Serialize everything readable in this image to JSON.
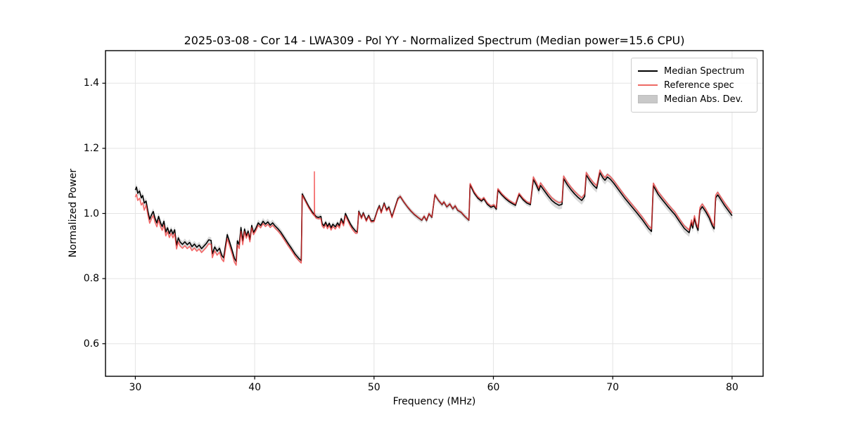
{
  "title": "2025-03-08 - Cor 14 - LWA309 - Pol YY - Normalized Spectrum (Median power=15.6 CPU)",
  "axes": {
    "xlabel": "Frequency (MHz)",
    "ylabel": "Normalized Power",
    "xlim": [
      27.5,
      82.6
    ],
    "ylim": [
      0.5,
      1.5
    ],
    "xticks": [
      30,
      40,
      50,
      60,
      70,
      80
    ],
    "yticks": [
      0.6,
      0.8,
      1.0,
      1.2,
      1.4
    ],
    "grid": true
  },
  "colors": {
    "median_line": "#000000",
    "reference_line": "#f03030",
    "reference_opacity": 0.72,
    "mad_band": "#bfbfbf",
    "grid": "#e4e4e4",
    "spine": "#000000",
    "legend_border": "#cccccc"
  },
  "legend": {
    "position": "upper right",
    "items": [
      {
        "label": "Median Spectrum",
        "handle": "line",
        "color": "#000000"
      },
      {
        "label": "Reference spec",
        "handle": "line",
        "color": "#ee6a64"
      },
      {
        "label": "Median Abs. Dev.",
        "handle": "patch",
        "color": "#c9c9c9"
      }
    ]
  },
  "chart_data": {
    "type": "line",
    "title": "2025-03-08 - Cor 14 - LWA309 - Pol YY - Normalized Spectrum (Median power=15.6 CPU)",
    "xlabel": "Frequency (MHz)",
    "ylabel": "Normalized Power",
    "xlim": [
      27.5,
      82.6
    ],
    "ylim": [
      0.5,
      1.5
    ],
    "legend_position": "upper right",
    "series": [
      {
        "name": "Median Spectrum",
        "color": "#000000",
        "points": [
          [
            30.0,
            1.072
          ],
          [
            30.1,
            1.081
          ],
          [
            30.2,
            1.062
          ],
          [
            30.35,
            1.069
          ],
          [
            30.5,
            1.048
          ],
          [
            30.62,
            1.055
          ],
          [
            30.75,
            1.032
          ],
          [
            30.9,
            1.038
          ],
          [
            31.05,
            1.008
          ],
          [
            31.2,
            0.982
          ],
          [
            31.35,
            0.995
          ],
          [
            31.5,
            1.006
          ],
          [
            31.65,
            0.985
          ],
          [
            31.8,
            0.971
          ],
          [
            31.95,
            0.991
          ],
          [
            32.1,
            0.972
          ],
          [
            32.25,
            0.96
          ],
          [
            32.4,
            0.976
          ],
          [
            32.55,
            0.943
          ],
          [
            32.7,
            0.956
          ],
          [
            32.85,
            0.938
          ],
          [
            33.0,
            0.951
          ],
          [
            33.15,
            0.937
          ],
          [
            33.3,
            0.95
          ],
          [
            33.45,
            0.903
          ],
          [
            33.6,
            0.925
          ],
          [
            33.75,
            0.912
          ],
          [
            33.95,
            0.905
          ],
          [
            34.15,
            0.913
          ],
          [
            34.35,
            0.904
          ],
          [
            34.55,
            0.911
          ],
          [
            34.75,
            0.898
          ],
          [
            34.95,
            0.906
          ],
          [
            35.15,
            0.896
          ],
          [
            35.35,
            0.903
          ],
          [
            35.55,
            0.892
          ],
          [
            35.75,
            0.9
          ],
          [
            35.95,
            0.908
          ],
          [
            36.15,
            0.919
          ],
          [
            36.35,
            0.917
          ],
          [
            36.45,
            0.876
          ],
          [
            36.65,
            0.897
          ],
          [
            36.85,
            0.884
          ],
          [
            37.05,
            0.893
          ],
          [
            37.25,
            0.871
          ],
          [
            37.4,
            0.864
          ],
          [
            37.55,
            0.9
          ],
          [
            37.7,
            0.935
          ],
          [
            37.9,
            0.912
          ],
          [
            38.1,
            0.888
          ],
          [
            38.3,
            0.862
          ],
          [
            38.45,
            0.853
          ],
          [
            38.55,
            0.916
          ],
          [
            38.7,
            0.904
          ],
          [
            38.85,
            0.957
          ],
          [
            39.0,
            0.916
          ],
          [
            39.15,
            0.952
          ],
          [
            39.3,
            0.931
          ],
          [
            39.45,
            0.946
          ],
          [
            39.6,
            0.92
          ],
          [
            39.75,
            0.963
          ],
          [
            39.9,
            0.942
          ],
          [
            40.1,
            0.954
          ],
          [
            40.3,
            0.971
          ],
          [
            40.5,
            0.963
          ],
          [
            40.7,
            0.976
          ],
          [
            40.9,
            0.967
          ],
          [
            41.1,
            0.974
          ],
          [
            41.3,
            0.964
          ],
          [
            41.5,
            0.971
          ],
          [
            41.7,
            0.962
          ],
          [
            41.95,
            0.953
          ],
          [
            42.2,
            0.942
          ],
          [
            42.5,
            0.925
          ],
          [
            42.8,
            0.908
          ],
          [
            43.1,
            0.892
          ],
          [
            43.4,
            0.875
          ],
          [
            43.7,
            0.862
          ],
          [
            43.9,
            0.855
          ],
          [
            43.98,
            1.06
          ],
          [
            44.25,
            1.041
          ],
          [
            44.55,
            1.02
          ],
          [
            44.85,
            1.003
          ],
          [
            45.0,
            0.997
          ],
          [
            45.15,
            0.99
          ],
          [
            45.35,
            0.988
          ],
          [
            45.55,
            0.991
          ],
          [
            45.65,
            0.969
          ],
          [
            45.8,
            0.962
          ],
          [
            45.95,
            0.973
          ],
          [
            46.1,
            0.96
          ],
          [
            46.25,
            0.97
          ],
          [
            46.4,
            0.956
          ],
          [
            46.55,
            0.967
          ],
          [
            46.75,
            0.959
          ],
          [
            46.95,
            0.971
          ],
          [
            47.1,
            0.962
          ],
          [
            47.25,
            0.984
          ],
          [
            47.45,
            0.969
          ],
          [
            47.6,
            1.0
          ],
          [
            47.8,
            0.984
          ],
          [
            48.0,
            0.969
          ],
          [
            48.2,
            0.957
          ],
          [
            48.45,
            0.946
          ],
          [
            48.6,
            0.943
          ],
          [
            48.72,
            1.007
          ],
          [
            48.95,
            0.987
          ],
          [
            49.1,
            1.002
          ],
          [
            49.35,
            0.979
          ],
          [
            49.55,
            0.994
          ],
          [
            49.75,
            0.977
          ],
          [
            50.0,
            0.978
          ],
          [
            50.3,
            1.012
          ],
          [
            50.45,
            1.024
          ],
          [
            50.6,
            1.004
          ],
          [
            50.85,
            1.032
          ],
          [
            51.05,
            1.011
          ],
          [
            51.25,
            1.02
          ],
          [
            51.5,
            0.99
          ],
          [
            51.75,
            1.018
          ],
          [
            52.0,
            1.046
          ],
          [
            52.2,
            1.052
          ],
          [
            52.5,
            1.035
          ],
          [
            52.8,
            1.02
          ],
          [
            53.1,
            1.007
          ],
          [
            53.4,
            0.996
          ],
          [
            53.7,
            0.987
          ],
          [
            54.0,
            0.979
          ],
          [
            54.2,
            0.991
          ],
          [
            54.4,
            0.978
          ],
          [
            54.6,
            0.999
          ],
          [
            54.85,
            0.988
          ],
          [
            55.1,
            1.057
          ],
          [
            55.4,
            1.04
          ],
          [
            55.7,
            1.027
          ],
          [
            55.85,
            1.035
          ],
          [
            56.1,
            1.02
          ],
          [
            56.35,
            1.029
          ],
          [
            56.6,
            1.014
          ],
          [
            56.8,
            1.023
          ],
          [
            57.0,
            1.01
          ],
          [
            57.3,
            1.003
          ],
          [
            57.6,
            0.991
          ],
          [
            57.95,
            0.979
          ],
          [
            58.05,
            1.088
          ],
          [
            58.4,
            1.062
          ],
          [
            58.7,
            1.047
          ],
          [
            59.0,
            1.038
          ],
          [
            59.2,
            1.045
          ],
          [
            59.5,
            1.028
          ],
          [
            59.8,
            1.019
          ],
          [
            60.05,
            1.023
          ],
          [
            60.25,
            1.013
          ],
          [
            60.38,
            1.072
          ],
          [
            60.7,
            1.057
          ],
          [
            61.0,
            1.046
          ],
          [
            61.3,
            1.037
          ],
          [
            61.6,
            1.03
          ],
          [
            61.85,
            1.025
          ],
          [
            62.0,
            1.042
          ],
          [
            62.15,
            1.058
          ],
          [
            62.5,
            1.042
          ],
          [
            62.8,
            1.032
          ],
          [
            63.1,
            1.027
          ],
          [
            63.35,
            1.104
          ],
          [
            63.6,
            1.087
          ],
          [
            63.8,
            1.07
          ],
          [
            63.95,
            1.086
          ],
          [
            64.3,
            1.068
          ],
          [
            64.6,
            1.053
          ],
          [
            64.9,
            1.04
          ],
          [
            65.2,
            1.031
          ],
          [
            65.5,
            1.025
          ],
          [
            65.75,
            1.028
          ],
          [
            65.88,
            1.107
          ],
          [
            66.2,
            1.088
          ],
          [
            66.5,
            1.073
          ],
          [
            66.8,
            1.06
          ],
          [
            67.1,
            1.049
          ],
          [
            67.4,
            1.04
          ],
          [
            67.65,
            1.052
          ],
          [
            67.78,
            1.118
          ],
          [
            68.1,
            1.1
          ],
          [
            68.4,
            1.086
          ],
          [
            68.65,
            1.077
          ],
          [
            68.92,
            1.125
          ],
          [
            69.2,
            1.108
          ],
          [
            69.35,
            1.102
          ],
          [
            69.55,
            1.112
          ],
          [
            69.8,
            1.105
          ],
          [
            70.1,
            1.092
          ],
          [
            70.5,
            1.072
          ],
          [
            71.0,
            1.047
          ],
          [
            71.5,
            1.025
          ],
          [
            72.0,
            1.003
          ],
          [
            72.5,
            0.98
          ],
          [
            73.0,
            0.954
          ],
          [
            73.25,
            0.945
          ],
          [
            73.4,
            1.085
          ],
          [
            73.8,
            1.059
          ],
          [
            74.2,
            1.04
          ],
          [
            74.6,
            1.022
          ],
          [
            75.0,
            1.005
          ],
          [
            75.2,
            0.997
          ],
          [
            75.6,
            0.975
          ],
          [
            76.0,
            0.954
          ],
          [
            76.4,
            0.941
          ],
          [
            76.6,
            0.972
          ],
          [
            76.7,
            0.955
          ],
          [
            76.85,
            0.985
          ],
          [
            77.0,
            0.962
          ],
          [
            77.15,
            0.948
          ],
          [
            77.3,
            1.01
          ],
          [
            77.5,
            1.021
          ],
          [
            77.8,
            1.005
          ],
          [
            78.1,
            0.985
          ],
          [
            78.35,
            0.962
          ],
          [
            78.5,
            0.953
          ],
          [
            78.62,
            1.048
          ],
          [
            78.8,
            1.057
          ],
          [
            79.1,
            1.04
          ],
          [
            79.4,
            1.023
          ],
          [
            79.7,
            1.008
          ],
          [
            79.9,
            0.998
          ],
          [
            80.0,
            0.993
          ]
        ]
      },
      {
        "name": "Reference spec",
        "color": "#f03030",
        "derived_from": "Median Spectrum",
        "offset_segments": [
          [
            30.8,
            -0.022
          ],
          [
            39.0,
            -0.012
          ],
          [
            43.95,
            -0.007
          ],
          [
            45.4,
            -0.004
          ],
          [
            48.5,
            -0.007
          ],
          [
            52.0,
            -0.003
          ],
          [
            58.0,
            0.001
          ],
          [
            63.2,
            0.004
          ],
          [
            90.0,
            0.008
          ]
        ],
        "spike": {
          "freq": 45.0,
          "value": 1.128
        }
      },
      {
        "name": "Median Abs. Dev.",
        "band_around": "Median Spectrum",
        "color": "#bfbfbf",
        "halfwidth_segments": [
          [
            44.0,
            0.01
          ],
          [
            63.2,
            0.008
          ],
          [
            90.0,
            0.013
          ]
        ]
      }
    ]
  }
}
